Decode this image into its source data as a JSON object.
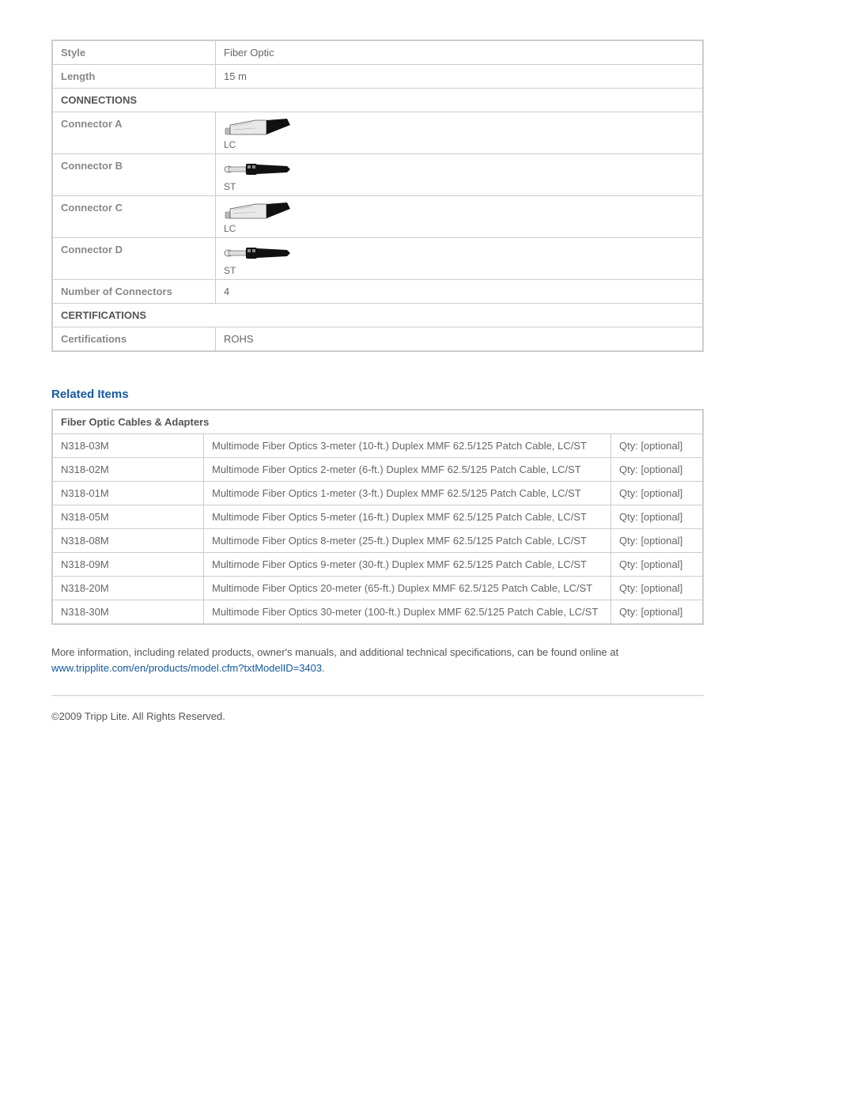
{
  "specs": {
    "style": {
      "label": "Style",
      "value": "Fiber Optic"
    },
    "length": {
      "label": "Length",
      "value": "15 m"
    },
    "connections_header": "CONNECTIONS",
    "connector_a": {
      "label": "Connector A",
      "type": "LC"
    },
    "connector_b": {
      "label": "Connector B",
      "type": "ST"
    },
    "connector_c": {
      "label": "Connector C",
      "type": "LC"
    },
    "connector_d": {
      "label": "Connector D",
      "type": "ST"
    },
    "num_connectors": {
      "label": "Number of Connectors",
      "value": "4"
    },
    "certifications_header": "CERTIFICATIONS",
    "certifications": {
      "label": "Certifications",
      "value": "ROHS"
    }
  },
  "related": {
    "heading": "Related Items",
    "category": "Fiber Optic Cables & Adapters",
    "items": [
      {
        "sku": "N318-03M",
        "desc": "Multimode Fiber Optics 3-meter (10-ft.) Duplex MMF 62.5/125 Patch Cable, LC/ST",
        "qty": "Qty: [optional]"
      },
      {
        "sku": "N318-02M",
        "desc": "Multimode Fiber Optics 2-meter (6-ft.) Duplex MMF 62.5/125 Patch Cable, LC/ST",
        "qty": "Qty: [optional]"
      },
      {
        "sku": "N318-01M",
        "desc": "Multimode Fiber Optics 1-meter (3-ft.) Duplex MMF 62.5/125 Patch Cable, LC/ST",
        "qty": "Qty: [optional]"
      },
      {
        "sku": "N318-05M",
        "desc": "Multimode Fiber Optics 5-meter (16-ft.) Duplex MMF 62.5/125 Patch Cable, LC/ST",
        "qty": "Qty: [optional]"
      },
      {
        "sku": "N318-08M",
        "desc": "Multimode Fiber Optics 8-meter (25-ft.) Duplex MMF 62.5/125 Patch Cable, LC/ST",
        "qty": "Qty: [optional]"
      },
      {
        "sku": "N318-09M",
        "desc": "Multimode Fiber Optics 9-meter (30-ft.) Duplex MMF 62.5/125 Patch Cable, LC/ST",
        "qty": "Qty: [optional]"
      },
      {
        "sku": "N318-20M",
        "desc": "Multimode Fiber Optics 20-meter (65-ft.) Duplex MMF 62.5/125 Patch Cable, LC/ST",
        "qty": "Qty: [optional]"
      },
      {
        "sku": "N318-30M",
        "desc": "Multimode Fiber Optics 30-meter (100-ft.) Duplex MMF 62.5/125 Patch Cable, LC/ST",
        "qty": "Qty: [optional]"
      }
    ]
  },
  "footer": {
    "more_info_text": "More information, including related products, owner's manuals, and additional technical specifications, can be found online at",
    "link_text": "www.tripplite.com/en/products/model.cfm?txtModelID=3403",
    "link_suffix": ".",
    "copyright": "©2009 Tripp Lite.  All Rights Reserved."
  },
  "colors": {
    "border": "#cccccc",
    "text": "#555555",
    "label": "#888888",
    "value": "#666666",
    "link": "#145aa0",
    "heading": "#145aa0"
  }
}
